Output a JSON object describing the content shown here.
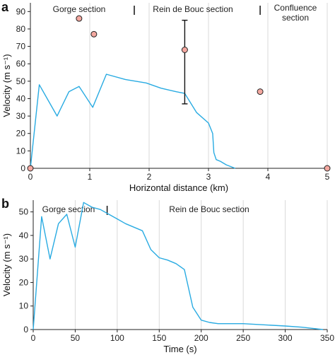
{
  "chart_data": [
    {
      "type": "line",
      "panel_label": "a",
      "xlabel": "Horizontal distance (km)",
      "ylabel": "Velocity (m s⁻¹)",
      "xlim": [
        0,
        5
      ],
      "ylim": [
        0,
        95
      ],
      "x_ticks": [
        0,
        1,
        2,
        3,
        4,
        5
      ],
      "y_ticks": [
        0,
        10,
        20,
        30,
        40,
        50,
        60,
        70,
        80,
        90
      ],
      "grid": "vertical",
      "sections": [
        "Gorge section",
        "Rein de Bouc section",
        "Confluence section"
      ],
      "section_boundaries": [
        1.75,
        3.87
      ],
      "series": [
        {
          "color": "#29abe2",
          "x": [
            0,
            0.15,
            0.45,
            0.65,
            0.82,
            1.05,
            1.28,
            1.6,
            1.95,
            2.2,
            2.45,
            2.6,
            2.8,
            3.0,
            3.07,
            3.09,
            3.13,
            3.2,
            3.3,
            3.45
          ],
          "y": [
            0,
            48,
            30,
            44,
            47,
            35,
            54,
            51,
            49,
            46,
            44,
            43,
            32,
            26,
            20,
            9,
            5,
            4,
            2,
            0
          ]
        }
      ],
      "points": {
        "color": "#f4a8a0",
        "x": [
          0,
          0.82,
          1.07,
          2.6,
          3.87,
          5.0
        ],
        "y": [
          0,
          86,
          77,
          68,
          44,
          0
        ]
      },
      "error_bar": {
        "x": 2.6,
        "low": 37,
        "high": 85
      }
    },
    {
      "type": "line",
      "panel_label": "b",
      "xlabel": "Time (s)",
      "ylabel": "Velocity (m s⁻¹)",
      "xlim": [
        0,
        350
      ],
      "ylim": [
        0,
        55
      ],
      "x_ticks": [
        0,
        50,
        100,
        150,
        200,
        250,
        300,
        350
      ],
      "y_ticks": [
        0,
        10,
        20,
        30,
        40,
        50
      ],
      "grid": "vertical",
      "sections": [
        "Gorge section",
        "Rein de Bouc section"
      ],
      "section_boundaries": [
        88
      ],
      "series": [
        {
          "color": "#29abe2",
          "x": [
            0,
            10,
            20,
            30,
            40,
            50,
            60,
            70,
            80,
            90,
            100,
            110,
            120,
            130,
            140,
            150,
            160,
            170,
            180,
            190,
            200,
            210,
            220,
            250,
            300,
            320,
            335,
            345
          ],
          "y": [
            0,
            48,
            30,
            45,
            49,
            35,
            54,
            52,
            51,
            49,
            47,
            45,
            43.5,
            42,
            34,
            30.5,
            29.5,
            28,
            25.5,
            9.5,
            4,
            3,
            2.5,
            2.5,
            1.5,
            1,
            0.4,
            0
          ]
        }
      ]
    }
  ]
}
